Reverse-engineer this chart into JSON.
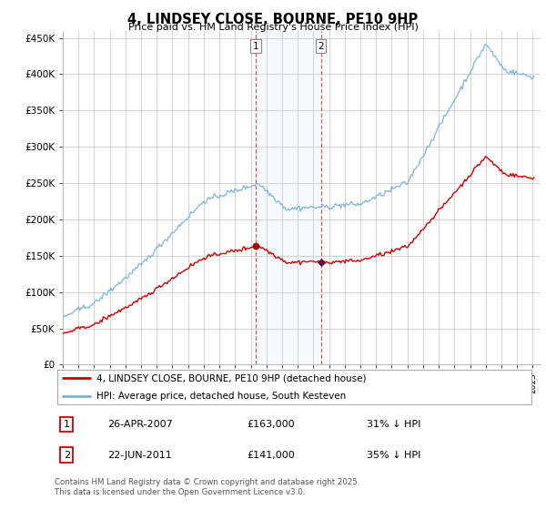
{
  "title": "4, LINDSEY CLOSE, BOURNE, PE10 9HP",
  "subtitle": "Price paid vs. HM Land Registry's House Price Index (HPI)",
  "yticks": [
    0,
    50000,
    100000,
    150000,
    200000,
    250000,
    300000,
    350000,
    400000,
    450000
  ],
  "ytick_labels": [
    "£0",
    "£50K",
    "£100K",
    "£150K",
    "£200K",
    "£250K",
    "£300K",
    "£350K",
    "£400K",
    "£450K"
  ],
  "hpi_color": "#7ab3d4",
  "price_color": "#cc0000",
  "sale1_year": 2007.32,
  "sale1_price": 163000,
  "sale2_year": 2011.47,
  "sale2_price": 141000,
  "legend_label1": "4, LINDSEY CLOSE, BOURNE, PE10 9HP (detached house)",
  "legend_label2": "HPI: Average price, detached house, South Kesteven",
  "annotation1_date": "26-APR-2007",
  "annotation1_price": "£163,000",
  "annotation1_hpi": "31% ↓ HPI",
  "annotation2_date": "22-JUN-2011",
  "annotation2_price": "£141,000",
  "annotation2_hpi": "35% ↓ HPI",
  "footer": "Contains HM Land Registry data © Crown copyright and database right 2025.\nThis data is licensed under the Open Government Licence v3.0.",
  "background_color": "#ffffff",
  "grid_color": "#cccccc",
  "highlight_color": "#ddeef8"
}
